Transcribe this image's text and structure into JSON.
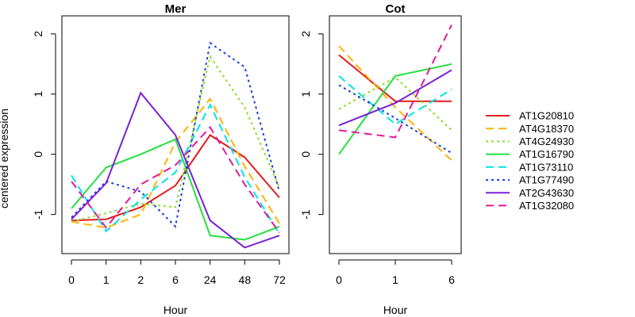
{
  "figure": {
    "ylabel": "centered expression"
  },
  "series_styles": [
    {
      "name": "AT1G20810",
      "color": "#e41a1c",
      "dash": "solid"
    },
    {
      "name": "AT4G18370",
      "color": "#ffb300",
      "dash": "dashed"
    },
    {
      "name": "AT4G24930",
      "color": "#8bdf2a",
      "dash": "dotted"
    },
    {
      "name": "AT1G16790",
      "color": "#22e040",
      "dash": "solid"
    },
    {
      "name": "AT1G73110",
      "color": "#00e5e5",
      "dash": "dashed"
    },
    {
      "name": "AT1G77490",
      "color": "#1f3fd6",
      "dash": "dotted"
    },
    {
      "name": "AT2G43630",
      "color": "#7a1fd6",
      "dash": "solid"
    },
    {
      "name": "AT1G32080",
      "color": "#e5199a",
      "dash": "dashed"
    }
  ],
  "chart_data": [
    {
      "type": "line",
      "title": "Mer",
      "xlabel": "Hour",
      "ylabel": "centered expression",
      "categories": [
        "0",
        "1",
        "2",
        "6",
        "24",
        "48",
        "72"
      ],
      "ylim": [
        -1.65,
        2.3
      ],
      "yticks": [
        -1,
        0,
        1,
        2
      ],
      "grid": false,
      "series": [
        {
          "name": "AT1G20810",
          "values": [
            -1.1,
            -1.08,
            -0.88,
            -0.52,
            0.32,
            -0.05,
            -0.72
          ]
        },
        {
          "name": "AT4G18370",
          "values": [
            -1.12,
            -1.22,
            -1.0,
            0.2,
            0.92,
            -0.2,
            -1.15
          ]
        },
        {
          "name": "AT4G24930",
          "values": [
            -1.12,
            -0.98,
            -0.82,
            -0.88,
            1.62,
            0.78,
            -0.55
          ]
        },
        {
          "name": "AT1G16790",
          "values": [
            -0.9,
            -0.22,
            0.0,
            0.25,
            -1.35,
            -1.42,
            -1.2
          ]
        },
        {
          "name": "AT1G73110",
          "values": [
            -0.35,
            -1.28,
            -0.75,
            -0.3,
            0.82,
            -0.38,
            -1.32
          ]
        },
        {
          "name": "AT1G77490",
          "values": [
            -1.05,
            -0.45,
            -0.62,
            -1.2,
            1.85,
            1.45,
            -0.62
          ]
        },
        {
          "name": "AT2G43630",
          "values": [
            -1.08,
            -0.48,
            1.02,
            0.32,
            -1.1,
            -1.55,
            -1.35
          ]
        },
        {
          "name": "AT1G32080",
          "values": [
            -0.45,
            -1.22,
            -0.5,
            -0.18,
            0.45,
            -0.5,
            -1.3
          ]
        }
      ]
    },
    {
      "type": "line",
      "title": "Cot",
      "xlabel": "Hour",
      "categories": [
        "0",
        "1",
        "6"
      ],
      "ylim": [
        -1.65,
        2.3
      ],
      "yticks": [
        -1,
        0,
        1,
        2
      ],
      "grid": false,
      "legend": "right",
      "series": [
        {
          "name": "AT1G20810",
          "values": [
            1.65,
            0.88,
            0.88
          ]
        },
        {
          "name": "AT4G18370",
          "values": [
            1.8,
            0.78,
            -0.1
          ]
        },
        {
          "name": "AT4G24930",
          "values": [
            0.75,
            1.28,
            0.4
          ]
        },
        {
          "name": "AT1G16790",
          "values": [
            0.0,
            1.3,
            1.5
          ]
        },
        {
          "name": "AT1G73110",
          "values": [
            1.3,
            0.5,
            1.08
          ]
        },
        {
          "name": "AT1G77490",
          "values": [
            1.15,
            0.6,
            0.02
          ]
        },
        {
          "name": "AT2G43630",
          "values": [
            0.48,
            0.85,
            1.4
          ]
        },
        {
          "name": "AT1G32080",
          "values": [
            0.4,
            0.28,
            2.15
          ]
        }
      ]
    }
  ]
}
